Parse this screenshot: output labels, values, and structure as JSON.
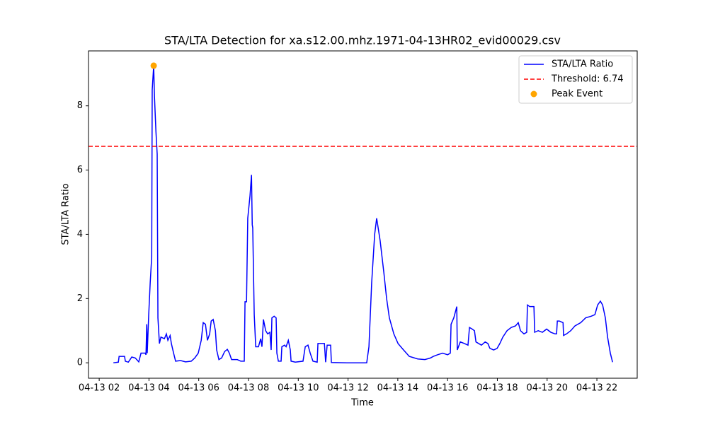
{
  "chart_data": {
    "type": "line",
    "title": "STA/LTA Detection for xa.s12.00.mhz.1971-04-13HR02_evid00029.csv",
    "x_label": "Time",
    "y_label": "STA/LTA Ratio",
    "x": [
      2.57,
      2.77,
      2.8,
      3.02,
      3.05,
      3.17,
      3.31,
      3.45,
      3.59,
      3.68,
      3.85,
      3.88,
      3.91,
      3.93,
      3.99,
      4.05,
      4.11,
      4.13,
      4.19,
      4.22,
      4.28,
      4.33,
      4.36,
      4.42,
      4.48,
      4.62,
      4.7,
      4.76,
      4.85,
      4.9,
      4.99,
      5.07,
      5.27,
      5.47,
      5.7,
      5.84,
      5.98,
      6.1,
      6.18,
      6.27,
      6.35,
      6.44,
      6.5,
      6.58,
      6.67,
      6.72,
      6.81,
      6.92,
      7.04,
      7.15,
      7.23,
      7.32,
      7.55,
      7.69,
      7.83,
      7.86,
      7.92,
      7.97,
      8.06,
      8.12,
      8.15,
      8.17,
      8.23,
      8.29,
      8.4,
      8.49,
      8.54,
      8.6,
      8.69,
      8.77,
      8.86,
      8.91,
      8.94,
      9.03,
      9.11,
      9.14,
      9.2,
      9.31,
      9.34,
      9.45,
      9.51,
      9.6,
      9.68,
      9.71,
      9.88,
      10.19,
      10.28,
      10.39,
      10.48,
      10.59,
      10.76,
      10.79,
      11.05,
      11.1,
      11.16,
      11.3,
      11.33,
      11.96,
      12.75,
      12.84,
      12.95,
      13.07,
      13.15,
      13.29,
      13.44,
      13.55,
      13.66,
      13.84,
      14.01,
      14.23,
      14.46,
      14.8,
      15.09,
      15.31,
      15.43,
      15.6,
      15.8,
      16.0,
      16.11,
      16.14,
      16.25,
      16.37,
      16.39,
      16.51,
      16.68,
      16.82,
      16.88,
      16.99,
      17.08,
      17.14,
      17.25,
      17.36,
      17.51,
      17.62,
      17.7,
      17.85,
      17.99,
      18.1,
      18.22,
      18.39,
      18.56,
      18.73,
      18.84,
      18.93,
      19.07,
      19.18,
      19.21,
      19.3,
      19.41,
      19.47,
      19.5,
      19.64,
      19.81,
      19.98,
      20.15,
      20.32,
      20.38,
      20.41,
      20.49,
      20.64,
      20.66,
      20.78,
      20.95,
      21.12,
      21.35,
      21.55,
      21.77,
      21.92,
      22.03,
      22.14,
      22.23,
      22.34,
      22.43,
      22.54,
      22.63
    ],
    "series": [
      {
        "name": "STA/LTA Ratio",
        "color": "#0000ff",
        "values": [
          0,
          0.02,
          0.2,
          0.2,
          0.05,
          0.02,
          0.18,
          0.15,
          0.03,
          0.3,
          0.3,
          0.25,
          1.2,
          0.3,
          1.5,
          2.5,
          3.3,
          8.5,
          9.25,
          8.3,
          7.2,
          6.5,
          1.4,
          0.6,
          0.8,
          0.75,
          0.9,
          0.7,
          0.85,
          0.6,
          0.3,
          0.05,
          0.07,
          0.03,
          0.05,
          0.15,
          0.3,
          0.7,
          1.25,
          1.2,
          0.7,
          0.9,
          1.3,
          1.35,
          1.0,
          0.4,
          0.1,
          0.15,
          0.35,
          0.42,
          0.3,
          0.1,
          0.1,
          0.05,
          0.05,
          1.9,
          1.9,
          4.5,
          5.2,
          5.85,
          4.3,
          4.2,
          1.5,
          0.5,
          0.5,
          0.75,
          0.5,
          1.35,
          1.0,
          0.9,
          0.95,
          0.4,
          1.4,
          1.45,
          1.4,
          0.3,
          0.05,
          0.05,
          0.5,
          0.55,
          0.5,
          0.7,
          0.4,
          0.05,
          0.02,
          0.05,
          0.5,
          0.55,
          0.3,
          0.05,
          0.02,
          0.6,
          0.6,
          0.02,
          0.55,
          0.55,
          0.01,
          0,
          0,
          0.5,
          2.5,
          4,
          4.5,
          3.8,
          2.8,
          2.0,
          1.4,
          0.9,
          0.6,
          0.4,
          0.2,
          0.12,
          0.1,
          0.15,
          0.2,
          0.25,
          0.3,
          0.25,
          0.3,
          1.2,
          1.4,
          1.75,
          0.4,
          0.65,
          0.6,
          0.55,
          1.1,
          1.05,
          1.0,
          0.65,
          0.6,
          0.55,
          0.65,
          0.6,
          0.45,
          0.4,
          0.45,
          0.6,
          0.8,
          1.0,
          1.1,
          1.15,
          1.25,
          1.0,
          0.9,
          0.95,
          1.8,
          1.75,
          1.75,
          1.75,
          0.95,
          1.0,
          0.95,
          1.05,
          0.95,
          0.9,
          0.9,
          1.3,
          1.3,
          1.25,
          0.85,
          0.9,
          1.0,
          1.15,
          1.25,
          1.4,
          1.45,
          1.5,
          1.8,
          1.92,
          1.8,
          1.4,
          0.8,
          0.3,
          0.02
        ]
      }
    ],
    "threshold": {
      "name": "Threshold: 6.74",
      "value": 6.74,
      "color": "#ff0000"
    },
    "peak": {
      "name": "Peak Event",
      "x": 4.19,
      "y": 9.25,
      "color": "#ffa500"
    },
    "xlim": [
      1.57,
      23.62
    ],
    "ylim": [
      -0.48,
      9.71
    ],
    "xticks": [
      {
        "value": 2,
        "label": "04-13 02"
      },
      {
        "value": 4,
        "label": "04-13 04"
      },
      {
        "value": 6,
        "label": "04-13 06"
      },
      {
        "value": 8,
        "label": "04-13 08"
      },
      {
        "value": 10,
        "label": "04-13 10"
      },
      {
        "value": 12,
        "label": "04-13 12"
      },
      {
        "value": 14,
        "label": "04-13 14"
      },
      {
        "value": 16,
        "label": "04-13 16"
      },
      {
        "value": 18,
        "label": "04-13 18"
      },
      {
        "value": 20,
        "label": "04-13 20"
      },
      {
        "value": 22,
        "label": "04-13 22"
      }
    ],
    "yticks": [
      0,
      2,
      4,
      6,
      8
    ],
    "legend": "upper right"
  }
}
